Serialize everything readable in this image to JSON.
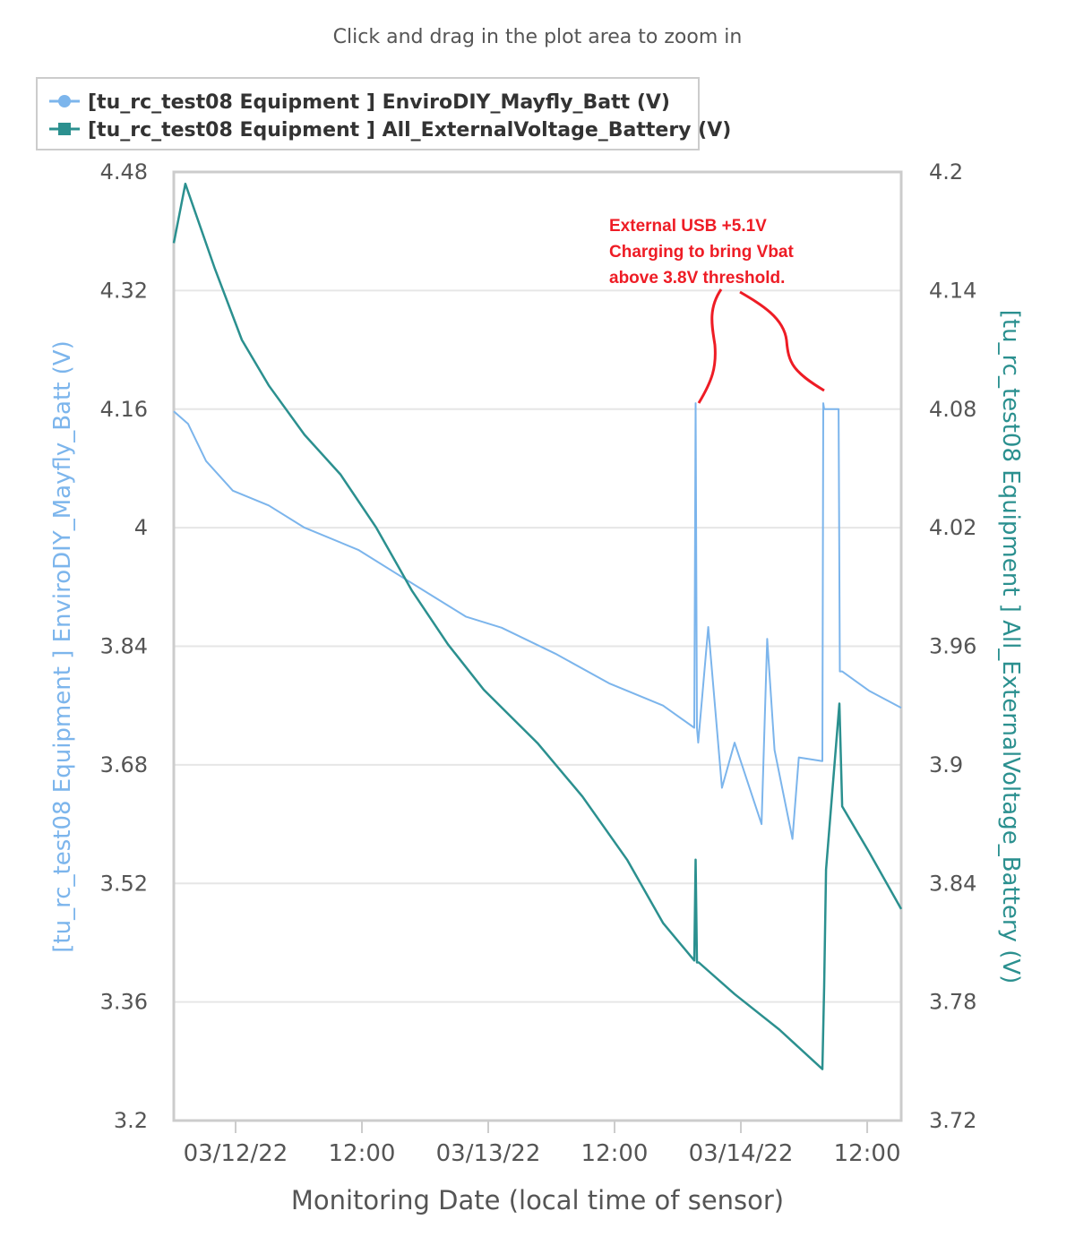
{
  "chart_data": {
    "type": "line",
    "subtitle": "Click and drag in the plot area to zoom in",
    "xlabel": "Monitoring Date (local time of sensor)",
    "x_units": "hours since 03/12/22 00:00",
    "xlim": [
      -5.87,
      63.23
    ],
    "x_ticks": [
      {
        "value": 0,
        "label": "03/12/22"
      },
      {
        "value": 12,
        "label": "12:00"
      },
      {
        "value": 24,
        "label": "03/13/22"
      },
      {
        "value": 36,
        "label": "12:00"
      },
      {
        "value": 48,
        "label": "03/14/22"
      },
      {
        "value": 60,
        "label": "12:00"
      }
    ],
    "y_left": {
      "label": "[tu_rc_test08 Equipment ] EnviroDIY_Mayfly_Batt (V)",
      "ylim": [
        3.2,
        4.48
      ],
      "ticks": [
        "3.2",
        "3.36",
        "3.52",
        "3.68",
        "3.84",
        "4",
        "4.16",
        "4.32",
        "4.48"
      ]
    },
    "y_right": {
      "label": "[tu_rc_test08 Equipment ] All_ExternalVoltage_Battery (V)",
      "ylim": [
        3.72,
        4.2
      ],
      "ticks": [
        "3.72",
        "3.78",
        "3.84",
        "3.9",
        "3.96",
        "4.02",
        "4.08",
        "4.14",
        "4.2"
      ]
    },
    "grid": true,
    "legend_position": "top-left",
    "series": [
      {
        "name": "[tu_rc_test08 Equipment ] EnviroDIY_Mayfly_Batt (V)",
        "axis": "left",
        "color": "#7cb5ec",
        "x": [
          -5.87,
          -4.51,
          -2.81,
          -0.26,
          3.15,
          6.55,
          11.66,
          15.06,
          18.47,
          21.87,
          25.28,
          30.38,
          35.49,
          40.6,
          43.57,
          43.7,
          43.83,
          43.95,
          44.9,
          46.2,
          47.4,
          49.96,
          50.5,
          51.2,
          52.9,
          53.5,
          55.74,
          55.83,
          55.91,
          57.28,
          57.4,
          57.62,
          60.17,
          63.23
        ],
        "values": [
          4.157,
          4.14,
          4.09,
          4.05,
          4.03,
          4.0,
          3.97,
          3.94,
          3.91,
          3.88,
          3.865,
          3.83,
          3.79,
          3.76,
          3.73,
          4.168,
          3.73,
          3.71,
          3.866,
          3.649,
          3.71,
          3.6,
          3.85,
          3.7,
          3.58,
          3.69,
          3.685,
          4.168,
          4.16,
          4.16,
          3.806,
          3.806,
          3.78,
          3.757
        ]
      },
      {
        "name": "[tu_rc_test08 Equipment ] All_ExternalVoltage_Battery (V)",
        "axis": "right",
        "color": "#2b908f",
        "x": [
          -5.87,
          -4.77,
          -1.96,
          0.6,
          3.15,
          6.55,
          9.96,
          13.36,
          16.77,
          20.17,
          23.57,
          28.68,
          32.94,
          37.19,
          40.6,
          43.57,
          43.7,
          43.83,
          44.0,
          47.4,
          51.66,
          55.74,
          55.91,
          56.09,
          57.36,
          57.62,
          60.17,
          63.23
        ],
        "values": [
          4.164,
          4.194,
          4.151,
          4.115,
          4.092,
          4.067,
          4.047,
          4.02,
          3.988,
          3.961,
          3.938,
          3.911,
          3.884,
          3.852,
          3.82,
          3.801,
          3.852,
          3.8,
          3.8,
          3.784,
          3.766,
          3.746,
          3.788,
          3.847,
          3.931,
          3.879,
          3.856,
          3.827
        ]
      }
    ],
    "annotation": [
      "External USB +5.1V",
      "Charging to bring Vbat",
      "above 3.8V threshold."
    ]
  }
}
